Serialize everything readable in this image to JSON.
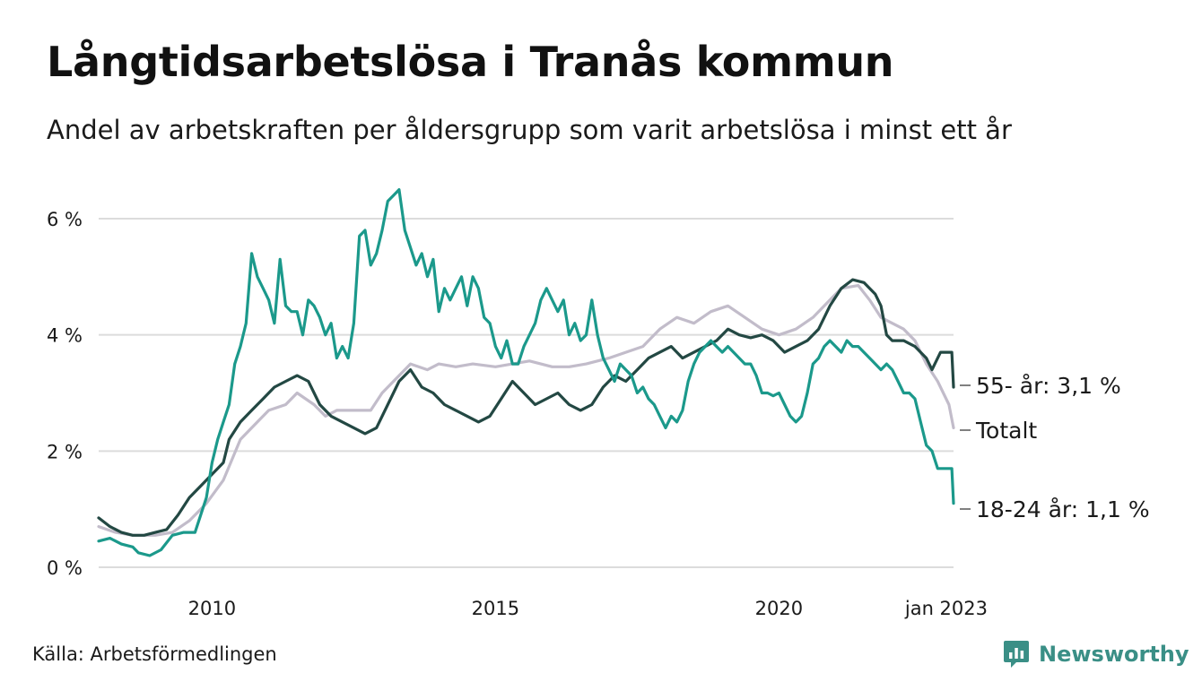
{
  "header": {
    "title": "Långtidsarbetslösa i Tranås kommun",
    "subtitle": "Andel av arbetskraften per åldersgrupp som varit arbetslösa i minst ett år"
  },
  "footer": {
    "source": "Källa: Arbetsförmedlingen",
    "brand": "Newsworthy",
    "brand_color": "#3a8f86"
  },
  "chart_data": {
    "type": "line",
    "x_unit": "year",
    "xlim": [
      2008.0,
      2023.08
    ],
    "ylim": [
      0,
      6.6
    ],
    "y_ticks": [
      0,
      2,
      4,
      6
    ],
    "y_tick_labels": [
      "0 %",
      "2 %",
      "4 %",
      "6 %"
    ],
    "x_ticks": [
      2010,
      2015,
      2020,
      2023
    ],
    "x_tick_labels": [
      "2010",
      "2015",
      "2020",
      "jan 2023"
    ],
    "grid": true,
    "legend": "direct-labels-right",
    "series": [
      {
        "name": "Totalt",
        "label": "Totalt",
        "color": "#c2bcca",
        "points": [
          [
            2008.0,
            0.7
          ],
          [
            2008.3,
            0.6
          ],
          [
            2008.6,
            0.55
          ],
          [
            2009.0,
            0.55
          ],
          [
            2009.3,
            0.6
          ],
          [
            2009.6,
            0.8
          ],
          [
            2009.9,
            1.1
          ],
          [
            2010.2,
            1.5
          ],
          [
            2010.5,
            2.2
          ],
          [
            2010.8,
            2.5
          ],
          [
            2011.0,
            2.7
          ],
          [
            2011.3,
            2.8
          ],
          [
            2011.5,
            3.0
          ],
          [
            2011.8,
            2.8
          ],
          [
            2012.0,
            2.6
          ],
          [
            2012.2,
            2.7
          ],
          [
            2012.5,
            2.7
          ],
          [
            2012.8,
            2.7
          ],
          [
            2013.0,
            3.0
          ],
          [
            2013.3,
            3.3
          ],
          [
            2013.5,
            3.5
          ],
          [
            2013.8,
            3.4
          ],
          [
            2014.0,
            3.5
          ],
          [
            2014.3,
            3.45
          ],
          [
            2014.6,
            3.5
          ],
          [
            2015.0,
            3.45
          ],
          [
            2015.3,
            3.5
          ],
          [
            2015.6,
            3.55
          ],
          [
            2016.0,
            3.45
          ],
          [
            2016.3,
            3.45
          ],
          [
            2016.6,
            3.5
          ],
          [
            2017.0,
            3.6
          ],
          [
            2017.3,
            3.7
          ],
          [
            2017.6,
            3.8
          ],
          [
            2017.9,
            4.1
          ],
          [
            2018.2,
            4.3
          ],
          [
            2018.5,
            4.2
          ],
          [
            2018.8,
            4.4
          ],
          [
            2019.1,
            4.5
          ],
          [
            2019.4,
            4.3
          ],
          [
            2019.7,
            4.1
          ],
          [
            2020.0,
            4.0
          ],
          [
            2020.3,
            4.1
          ],
          [
            2020.6,
            4.3
          ],
          [
            2020.9,
            4.6
          ],
          [
            2021.1,
            4.8
          ],
          [
            2021.4,
            4.85
          ],
          [
            2021.6,
            4.6
          ],
          [
            2021.8,
            4.3
          ],
          [
            2022.0,
            4.2
          ],
          [
            2022.2,
            4.1
          ],
          [
            2022.4,
            3.9
          ],
          [
            2022.6,
            3.5
          ],
          [
            2022.8,
            3.2
          ],
          [
            2023.0,
            2.8
          ],
          [
            2023.08,
            2.4
          ]
        ]
      },
      {
        "name": "55- år",
        "label": "55- år: 3,1 %",
        "color": "#234843",
        "points": [
          [
            2008.0,
            0.85
          ],
          [
            2008.2,
            0.7
          ],
          [
            2008.4,
            0.6
          ],
          [
            2008.6,
            0.55
          ],
          [
            2008.8,
            0.55
          ],
          [
            2009.0,
            0.6
          ],
          [
            2009.2,
            0.65
          ],
          [
            2009.4,
            0.9
          ],
          [
            2009.6,
            1.2
          ],
          [
            2009.8,
            1.4
          ],
          [
            2010.0,
            1.6
          ],
          [
            2010.2,
            1.8
          ],
          [
            2010.3,
            2.2
          ],
          [
            2010.5,
            2.5
          ],
          [
            2010.7,
            2.7
          ],
          [
            2010.9,
            2.9
          ],
          [
            2011.1,
            3.1
          ],
          [
            2011.3,
            3.2
          ],
          [
            2011.5,
            3.3
          ],
          [
            2011.7,
            3.2
          ],
          [
            2011.9,
            2.8
          ],
          [
            2012.1,
            2.6
          ],
          [
            2012.3,
            2.5
          ],
          [
            2012.5,
            2.4
          ],
          [
            2012.7,
            2.3
          ],
          [
            2012.9,
            2.4
          ],
          [
            2013.1,
            2.8
          ],
          [
            2013.3,
            3.2
          ],
          [
            2013.5,
            3.4
          ],
          [
            2013.7,
            3.1
          ],
          [
            2013.9,
            3.0
          ],
          [
            2014.1,
            2.8
          ],
          [
            2014.3,
            2.7
          ],
          [
            2014.5,
            2.6
          ],
          [
            2014.7,
            2.5
          ],
          [
            2014.9,
            2.6
          ],
          [
            2015.1,
            2.9
          ],
          [
            2015.3,
            3.2
          ],
          [
            2015.5,
            3.0
          ],
          [
            2015.7,
            2.8
          ],
          [
            2015.9,
            2.9
          ],
          [
            2016.1,
            3.0
          ],
          [
            2016.3,
            2.8
          ],
          [
            2016.5,
            2.7
          ],
          [
            2016.7,
            2.8
          ],
          [
            2016.9,
            3.1
          ],
          [
            2017.1,
            3.3
          ],
          [
            2017.3,
            3.2
          ],
          [
            2017.5,
            3.4
          ],
          [
            2017.7,
            3.6
          ],
          [
            2017.9,
            3.7
          ],
          [
            2018.1,
            3.8
          ],
          [
            2018.3,
            3.6
          ],
          [
            2018.5,
            3.7
          ],
          [
            2018.7,
            3.8
          ],
          [
            2018.9,
            3.9
          ],
          [
            2019.1,
            4.1
          ],
          [
            2019.3,
            4.0
          ],
          [
            2019.5,
            3.95
          ],
          [
            2019.7,
            4.0
          ],
          [
            2019.9,
            3.9
          ],
          [
            2020.1,
            3.7
          ],
          [
            2020.3,
            3.8
          ],
          [
            2020.5,
            3.9
          ],
          [
            2020.7,
            4.1
          ],
          [
            2020.9,
            4.5
          ],
          [
            2021.1,
            4.8
          ],
          [
            2021.3,
            4.95
          ],
          [
            2021.5,
            4.9
          ],
          [
            2021.7,
            4.7
          ],
          [
            2021.8,
            4.5
          ],
          [
            2021.9,
            4.0
          ],
          [
            2022.0,
            3.9
          ],
          [
            2022.2,
            3.9
          ],
          [
            2022.4,
            3.8
          ],
          [
            2022.6,
            3.6
          ],
          [
            2022.7,
            3.4
          ],
          [
            2022.85,
            3.7
          ],
          [
            2023.0,
            3.7
          ],
          [
            2023.05,
            3.7
          ],
          [
            2023.08,
            3.1
          ]
        ]
      },
      {
        "name": "18-24 år",
        "label": "18-24 år: 1,1 %",
        "color": "#1b998b",
        "points": [
          [
            2008.0,
            0.45
          ],
          [
            2008.2,
            0.5
          ],
          [
            2008.4,
            0.4
          ],
          [
            2008.6,
            0.35
          ],
          [
            2008.7,
            0.25
          ],
          [
            2008.9,
            0.2
          ],
          [
            2009.1,
            0.3
          ],
          [
            2009.3,
            0.55
          ],
          [
            2009.5,
            0.6
          ],
          [
            2009.7,
            0.6
          ],
          [
            2009.9,
            1.2
          ],
          [
            2010.0,
            1.8
          ],
          [
            2010.1,
            2.2
          ],
          [
            2010.2,
            2.5
          ],
          [
            2010.3,
            2.8
          ],
          [
            2010.4,
            3.5
          ],
          [
            2010.5,
            3.8
          ],
          [
            2010.6,
            4.2
          ],
          [
            2010.7,
            5.4
          ],
          [
            2010.8,
            5.0
          ],
          [
            2010.9,
            4.8
          ],
          [
            2011.0,
            4.6
          ],
          [
            2011.1,
            4.2
          ],
          [
            2011.2,
            5.3
          ],
          [
            2011.3,
            4.5
          ],
          [
            2011.4,
            4.4
          ],
          [
            2011.5,
            4.4
          ],
          [
            2011.6,
            4.0
          ],
          [
            2011.7,
            4.6
          ],
          [
            2011.8,
            4.5
          ],
          [
            2011.9,
            4.3
          ],
          [
            2012.0,
            4.0
          ],
          [
            2012.1,
            4.2
          ],
          [
            2012.2,
            3.6
          ],
          [
            2012.3,
            3.8
          ],
          [
            2012.4,
            3.6
          ],
          [
            2012.5,
            4.2
          ],
          [
            2012.6,
            5.7
          ],
          [
            2012.7,
            5.8
          ],
          [
            2012.8,
            5.2
          ],
          [
            2012.9,
            5.4
          ],
          [
            2013.0,
            5.8
          ],
          [
            2013.1,
            6.3
          ],
          [
            2013.2,
            6.4
          ],
          [
            2013.3,
            6.5
          ],
          [
            2013.4,
            5.8
          ],
          [
            2013.5,
            5.5
          ],
          [
            2013.6,
            5.2
          ],
          [
            2013.7,
            5.4
          ],
          [
            2013.8,
            5.0
          ],
          [
            2013.9,
            5.3
          ],
          [
            2014.0,
            4.4
          ],
          [
            2014.1,
            4.8
          ],
          [
            2014.2,
            4.6
          ],
          [
            2014.3,
            4.8
          ],
          [
            2014.4,
            5.0
          ],
          [
            2014.5,
            4.5
          ],
          [
            2014.6,
            5.0
          ],
          [
            2014.7,
            4.8
          ],
          [
            2014.8,
            4.3
          ],
          [
            2014.9,
            4.2
          ],
          [
            2015.0,
            3.8
          ],
          [
            2015.1,
            3.6
          ],
          [
            2015.2,
            3.9
          ],
          [
            2015.3,
            3.5
          ],
          [
            2015.4,
            3.5
          ],
          [
            2015.5,
            3.8
          ],
          [
            2015.6,
            4.0
          ],
          [
            2015.7,
            4.2
          ],
          [
            2015.8,
            4.6
          ],
          [
            2015.9,
            4.8
          ],
          [
            2016.0,
            4.6
          ],
          [
            2016.1,
            4.4
          ],
          [
            2016.2,
            4.6
          ],
          [
            2016.3,
            4.0
          ],
          [
            2016.4,
            4.2
          ],
          [
            2016.5,
            3.9
          ],
          [
            2016.6,
            4.0
          ],
          [
            2016.7,
            4.6
          ],
          [
            2016.8,
            4.0
          ],
          [
            2016.9,
            3.6
          ],
          [
            2017.0,
            3.4
          ],
          [
            2017.1,
            3.2
          ],
          [
            2017.2,
            3.5
          ],
          [
            2017.3,
            3.4
          ],
          [
            2017.4,
            3.3
          ],
          [
            2017.5,
            3.0
          ],
          [
            2017.6,
            3.1
          ],
          [
            2017.7,
            2.9
          ],
          [
            2017.8,
            2.8
          ],
          [
            2017.9,
            2.6
          ],
          [
            2018.0,
            2.4
          ],
          [
            2018.1,
            2.6
          ],
          [
            2018.2,
            2.5
          ],
          [
            2018.3,
            2.7
          ],
          [
            2018.4,
            3.2
          ],
          [
            2018.5,
            3.5
          ],
          [
            2018.6,
            3.7
          ],
          [
            2018.7,
            3.8
          ],
          [
            2018.8,
            3.9
          ],
          [
            2018.9,
            3.8
          ],
          [
            2019.0,
            3.7
          ],
          [
            2019.1,
            3.8
          ],
          [
            2019.2,
            3.7
          ],
          [
            2019.3,
            3.6
          ],
          [
            2019.4,
            3.5
          ],
          [
            2019.5,
            3.5
          ],
          [
            2019.6,
            3.3
          ],
          [
            2019.7,
            3.0
          ],
          [
            2019.8,
            3.0
          ],
          [
            2019.9,
            2.95
          ],
          [
            2020.0,
            3.0
          ],
          [
            2020.1,
            2.8
          ],
          [
            2020.2,
            2.6
          ],
          [
            2020.3,
            2.5
          ],
          [
            2020.4,
            2.6
          ],
          [
            2020.5,
            3.0
          ],
          [
            2020.6,
            3.5
          ],
          [
            2020.7,
            3.6
          ],
          [
            2020.8,
            3.8
          ],
          [
            2020.9,
            3.9
          ],
          [
            2021.0,
            3.8
          ],
          [
            2021.1,
            3.7
          ],
          [
            2021.2,
            3.9
          ],
          [
            2021.3,
            3.8
          ],
          [
            2021.4,
            3.8
          ],
          [
            2021.5,
            3.7
          ],
          [
            2021.6,
            3.6
          ],
          [
            2021.7,
            3.5
          ],
          [
            2021.8,
            3.4
          ],
          [
            2021.9,
            3.5
          ],
          [
            2022.0,
            3.4
          ],
          [
            2022.1,
            3.2
          ],
          [
            2022.2,
            3.0
          ],
          [
            2022.3,
            3.0
          ],
          [
            2022.4,
            2.9
          ],
          [
            2022.5,
            2.5
          ],
          [
            2022.6,
            2.1
          ],
          [
            2022.7,
            2.0
          ],
          [
            2022.8,
            1.7
          ],
          [
            2022.9,
            1.7
          ],
          [
            2023.0,
            1.7
          ],
          [
            2023.05,
            1.7
          ],
          [
            2023.08,
            1.1
          ]
        ]
      }
    ]
  }
}
